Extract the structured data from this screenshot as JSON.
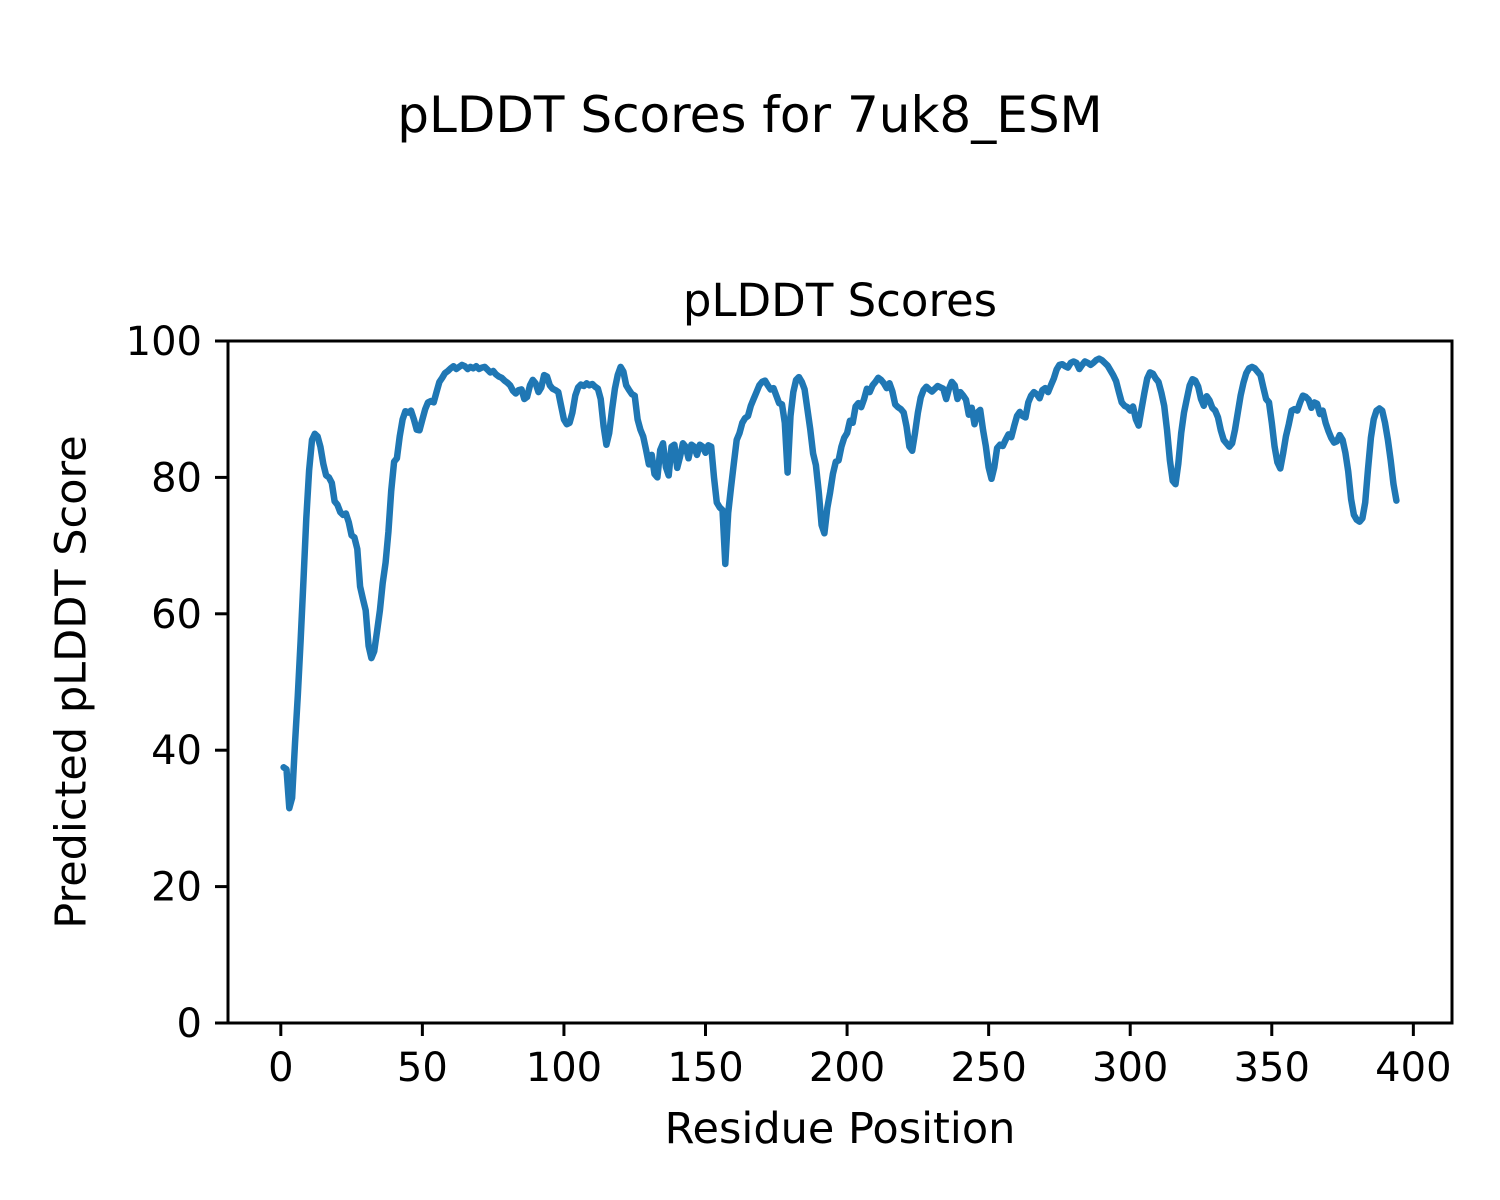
{
  "figure": {
    "suptitle": "pLDDT Scores for 7uk8_ESM",
    "axes_title": "pLDDT Scores",
    "xlabel": "Residue Position",
    "ylabel": "Predicted pLDDT Score"
  },
  "chart_data": {
    "type": "line",
    "title": "pLDDT Scores",
    "xlabel": "Residue Position",
    "ylabel": "Predicted pLDDT Score",
    "grid": false,
    "legend": false,
    "line_color": "#1f77b4",
    "axis_color": "#000000",
    "background_color": "#ffffff",
    "xlim": [
      -18.65,
      413.65
    ],
    "ylim": [
      0,
      100
    ],
    "x_ticks": [
      0,
      50,
      100,
      150,
      200,
      250,
      300,
      350,
      400
    ],
    "y_ticks": [
      0,
      20,
      40,
      60,
      80,
      100
    ],
    "series": [
      {
        "name": "pLDDT",
        "x_start": 1,
        "x_step": 1,
        "y": [
          37.5,
          37.2,
          31.5,
          33.0,
          41.0,
          48.0,
          56.0,
          65.0,
          74.0,
          81.0,
          85.5,
          86.4,
          86.0,
          84.5,
          82.0,
          80.3,
          80.0,
          79.2,
          76.5,
          76.0,
          74.9,
          74.5,
          74.7,
          73.4,
          71.5,
          71.2,
          69.5,
          64.0,
          62.2,
          60.5,
          55.3,
          53.5,
          54.5,
          57.5,
          60.5,
          64.5,
          67.5,
          72.0,
          78.0,
          82.3,
          82.8,
          86.0,
          88.5,
          89.7,
          89.5,
          89.8,
          88.5,
          87.0,
          86.9,
          88.5,
          90.0,
          91.0,
          91.2,
          91.0,
          92.5,
          94.0,
          94.6,
          95.3,
          95.6,
          96.0,
          96.3,
          95.9,
          96.2,
          96.5,
          96.3,
          95.9,
          96.2,
          96.0,
          96.3,
          95.9,
          96.1,
          96.2,
          95.8,
          95.4,
          95.6,
          95.1,
          94.8,
          94.6,
          94.2,
          93.9,
          93.5,
          92.7,
          92.3,
          92.8,
          92.9,
          91.5,
          91.8,
          93.5,
          94.3,
          93.8,
          92.5,
          93.2,
          95.0,
          94.8,
          93.5,
          93.0,
          92.8,
          92.5,
          90.5,
          88.5,
          87.8,
          88.0,
          89.5,
          92.0,
          93.2,
          93.6,
          93.4,
          93.8,
          93.5,
          93.7,
          93.3,
          93.0,
          91.5,
          87.5,
          84.8,
          86.5,
          90.0,
          93.0,
          95.0,
          96.2,
          95.5,
          93.5,
          92.8,
          92.2,
          92.0,
          88.5,
          87.0,
          86.0,
          84.0,
          81.9,
          83.3,
          80.5,
          80.0,
          84.0,
          85.0,
          81.5,
          80.3,
          84.5,
          84.8,
          81.4,
          83.0,
          85.0,
          84.5,
          82.8,
          84.8,
          84.5,
          83.3,
          84.8,
          84.5,
          83.6,
          84.7,
          84.5,
          80.0,
          76.3,
          75.6,
          75.2,
          67.3,
          74.8,
          78.5,
          82.0,
          85.5,
          86.5,
          88.0,
          88.7,
          89.0,
          90.5,
          91.5,
          92.5,
          93.5,
          94.0,
          94.2,
          93.5,
          92.9,
          93.1,
          92.0,
          90.9,
          90.7,
          88.0,
          80.7,
          89.0,
          92.5,
          94.3,
          94.7,
          94.0,
          92.9,
          90.0,
          87.0,
          83.5,
          81.8,
          77.8,
          73.0,
          71.8,
          75.5,
          77.8,
          80.5,
          82.3,
          82.5,
          84.5,
          85.8,
          86.5,
          88.3,
          88.0,
          90.4,
          90.9,
          90.3,
          91.5,
          93.0,
          92.5,
          93.5,
          94.0,
          94.6,
          94.3,
          93.8,
          93.1,
          93.8,
          92.6,
          90.7,
          90.3,
          90.0,
          89.5,
          87.5,
          84.5,
          83.9,
          86.5,
          89.5,
          91.7,
          92.8,
          93.3,
          92.9,
          92.6,
          93.0,
          93.4,
          93.2,
          93.0,
          91.5,
          93.0,
          94.0,
          93.5,
          91.5,
          92.5,
          92.0,
          91.4,
          89.2,
          90.2,
          87.8,
          89.5,
          89.9,
          87.0,
          84.6,
          81.5,
          79.8,
          81.5,
          84.3,
          84.8,
          84.6,
          85.5,
          86.3,
          85.9,
          87.5,
          89.0,
          89.6,
          89.0,
          88.8,
          91.0,
          92.0,
          92.5,
          92.2,
          91.6,
          92.8,
          93.1,
          92.5,
          93.5,
          94.5,
          95.8,
          96.5,
          96.6,
          96.3,
          96.1,
          96.8,
          97.0,
          96.8,
          95.9,
          96.5,
          97.0,
          96.8,
          96.5,
          96.8,
          97.2,
          97.4,
          97.2,
          96.8,
          96.4,
          95.7,
          95.0,
          94.1,
          92.5,
          91.0,
          90.5,
          90.3,
          89.8,
          90.4,
          88.5,
          87.6,
          90.0,
          92.4,
          94.5,
          95.4,
          95.2,
          94.5,
          94.0,
          92.4,
          90.5,
          87.0,
          82.5,
          79.5,
          79.0,
          82.0,
          86.5,
          89.5,
          91.5,
          93.5,
          94.4,
          94.2,
          93.3,
          91.5,
          90.5,
          91.9,
          91.3,
          90.2,
          89.8,
          88.8,
          86.9,
          85.5,
          85.0,
          84.5,
          85.0,
          87.0,
          89.5,
          92.0,
          93.9,
          95.3,
          96.0,
          96.2,
          96.0,
          95.5,
          95.0,
          93.2,
          91.5,
          91.0,
          88.0,
          84.5,
          82.2,
          81.3,
          83.5,
          86.0,
          87.8,
          89.8,
          90.0,
          89.8,
          91.0,
          92.0,
          91.8,
          91.4,
          90.2,
          91.0,
          90.8,
          89.3,
          89.8,
          88.0,
          86.8,
          85.8,
          85.1,
          85.3,
          86.2,
          85.5,
          83.6,
          80.9,
          76.8,
          74.5,
          73.8,
          73.5,
          74.0,
          76.3,
          81.2,
          85.8,
          88.5,
          89.8,
          90.1,
          89.8,
          88.0,
          85.5,
          82.5,
          79.0,
          76.6
        ]
      }
    ]
  }
}
